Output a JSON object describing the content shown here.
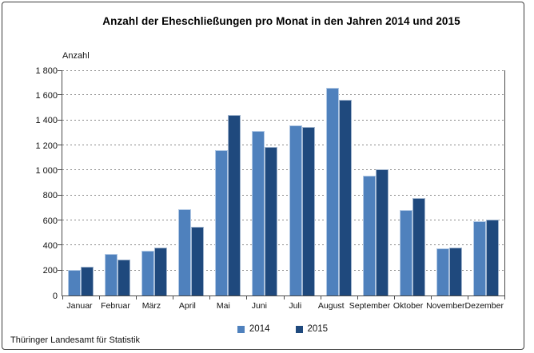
{
  "title": "Anzahl der Eheschließungen pro Monat in den Jahren 2014 und 2015",
  "y_axis_label": "Anzahl",
  "footer": "Thüringer Landesamt für Statistik",
  "colors": {
    "series_2014": "#4F81BD",
    "series_2015": "#1F497D",
    "gridline": "#8D8D8D",
    "axis": "#4A4A4A",
    "background": "#FFFFFF"
  },
  "legend": [
    {
      "label": "2014",
      "color": "#4F81BD"
    },
    {
      "label": "2015",
      "color": "#1F497D"
    }
  ],
  "chart_data": {
    "type": "bar",
    "title": "Anzahl der Eheschließungen pro Monat in den Jahren 2014 und 2015",
    "xlabel": "",
    "ylabel": "Anzahl",
    "categories": [
      "Januar",
      "Februar",
      "März",
      "April",
      "Mai",
      "Juni",
      "Juli",
      "August",
      "September",
      "Oktober",
      "November",
      "Dezember"
    ],
    "series": [
      {
        "name": "2014",
        "color": "#4F81BD",
        "values": [
          205,
          335,
          355,
          690,
          1160,
          1315,
          1360,
          1660,
          960,
          685,
          375,
          595
        ]
      },
      {
        "name": "2015",
        "color": "#1F497D",
        "values": [
          230,
          290,
          385,
          550,
          1440,
          1190,
          1345,
          1565,
          1010,
          780,
          380,
          605
        ]
      }
    ],
    "ylim": [
      0,
      1800
    ],
    "ytick_step": 200,
    "ytick_labels": [
      "0",
      "200",
      "400",
      "600",
      "800",
      "1 000",
      "1 200",
      "1 400",
      "1 600",
      "1 800"
    ],
    "grid": true,
    "grid_style": "dashed",
    "legend_position": "bottom",
    "source": "Thüringer Landesamt für Statistik"
  }
}
